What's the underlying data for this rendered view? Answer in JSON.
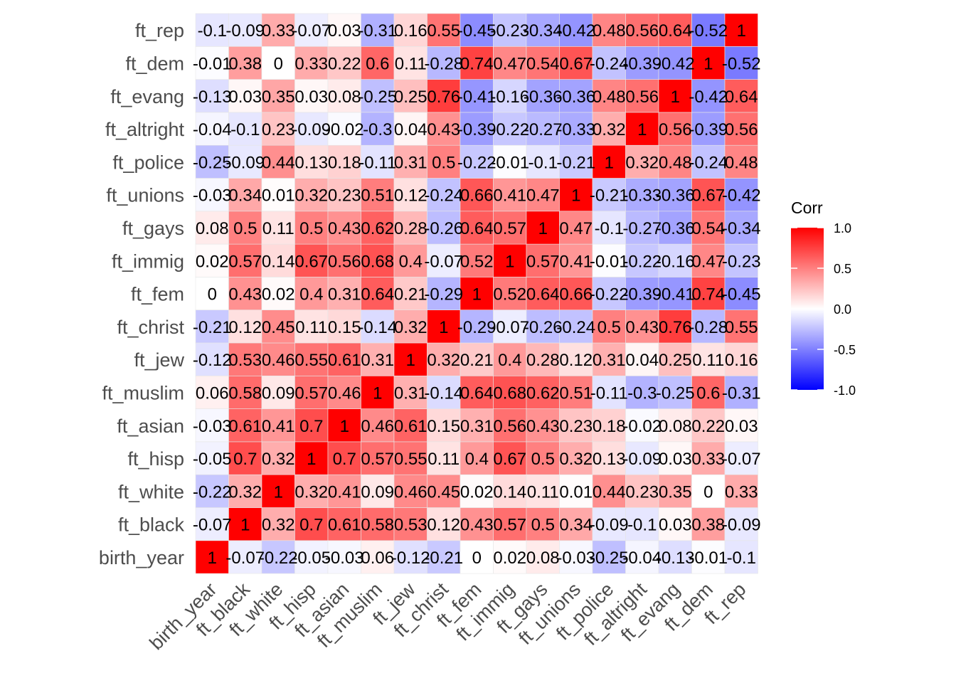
{
  "chart_data": {
    "type": "heatmap",
    "title": "",
    "xlabel": "",
    "ylabel": "",
    "variables": [
      "birth_year",
      "ft_black",
      "ft_white",
      "ft_hisp",
      "ft_asian",
      "ft_muslim",
      "ft_jew",
      "ft_christ",
      "ft_fem",
      "ft_immig",
      "ft_gays",
      "ft_unions",
      "ft_police",
      "ft_altright",
      "ft_evang",
      "ft_dem",
      "ft_rep"
    ],
    "matrix": [
      [
        1,
        -0.07,
        -0.22,
        -0.05,
        -0.03,
        0.06,
        -0.12,
        -0.21,
        0,
        0.02,
        0.08,
        -0.03,
        -0.25,
        -0.04,
        -0.13,
        -0.01,
        -0.1
      ],
      [
        -0.07,
        1,
        0.32,
        0.7,
        0.61,
        0.58,
        0.53,
        0.12,
        0.43,
        0.57,
        0.5,
        0.34,
        -0.09,
        -0.1,
        0.03,
        0.38,
        -0.09
      ],
      [
        -0.22,
        0.32,
        1,
        0.32,
        0.41,
        0.09,
        0.46,
        0.45,
        0.02,
        0.14,
        0.11,
        0.01,
        0.44,
        0.23,
        0.35,
        0,
        0.33
      ],
      [
        -0.05,
        0.7,
        0.32,
        1,
        0.7,
        0.57,
        0.55,
        0.11,
        0.4,
        0.67,
        0.5,
        0.32,
        0.13,
        -0.09,
        0.03,
        0.33,
        -0.07
      ],
      [
        -0.03,
        0.61,
        0.41,
        0.7,
        1,
        0.46,
        0.61,
        0.15,
        0.31,
        0.56,
        0.43,
        0.23,
        0.18,
        -0.02,
        0.08,
        0.22,
        0.03
      ],
      [
        0.06,
        0.58,
        0.09,
        0.57,
        0.46,
        1,
        0.31,
        -0.14,
        0.64,
        0.68,
        0.62,
        0.51,
        -0.11,
        -0.3,
        -0.25,
        0.6,
        -0.31
      ],
      [
        -0.12,
        0.53,
        0.46,
        0.55,
        0.61,
        0.31,
        1,
        0.32,
        0.21,
        0.4,
        0.28,
        0.12,
        0.31,
        0.04,
        0.25,
        0.11,
        0.16
      ],
      [
        -0.21,
        0.12,
        0.45,
        0.11,
        0.15,
        -0.14,
        0.32,
        1,
        -0.29,
        -0.07,
        -0.26,
        -0.24,
        0.5,
        0.43,
        0.76,
        -0.28,
        0.55
      ],
      [
        0,
        0.43,
        0.02,
        0.4,
        0.31,
        0.64,
        0.21,
        -0.29,
        1,
        0.52,
        0.64,
        0.66,
        -0.22,
        -0.39,
        -0.41,
        0.74,
        -0.45
      ],
      [
        0.02,
        0.57,
        0.14,
        0.67,
        0.56,
        0.68,
        0.4,
        -0.07,
        0.52,
        1,
        0.57,
        0.41,
        -0.01,
        -0.22,
        -0.16,
        0.47,
        -0.23
      ],
      [
        0.08,
        0.5,
        0.11,
        0.5,
        0.43,
        0.62,
        0.28,
        -0.26,
        0.64,
        0.57,
        1,
        0.47,
        -0.1,
        -0.27,
        -0.36,
        0.54,
        -0.34
      ],
      [
        -0.03,
        0.34,
        0.01,
        0.32,
        0.23,
        0.51,
        0.12,
        -0.24,
        0.66,
        0.41,
        0.47,
        1,
        -0.21,
        -0.33,
        -0.36,
        0.67,
        -0.42
      ],
      [
        -0.25,
        -0.09,
        0.44,
        0.13,
        0.18,
        -0.11,
        0.31,
        0.5,
        -0.22,
        -0.01,
        -0.1,
        -0.21,
        1,
        0.32,
        0.48,
        -0.24,
        0.48
      ],
      [
        -0.04,
        -0.1,
        0.23,
        -0.09,
        -0.02,
        -0.3,
        0.04,
        0.43,
        -0.39,
        -0.22,
        -0.27,
        -0.33,
        0.32,
        1,
        0.56,
        -0.39,
        0.56
      ],
      [
        -0.13,
        0.03,
        0.35,
        0.03,
        0.08,
        -0.25,
        0.25,
        0.76,
        -0.41,
        -0.16,
        -0.36,
        -0.36,
        0.48,
        0.56,
        1,
        -0.42,
        0.64
      ],
      [
        -0.01,
        0.38,
        0,
        0.33,
        0.22,
        0.6,
        0.11,
        -0.28,
        0.74,
        0.47,
        0.54,
        0.67,
        -0.24,
        -0.39,
        -0.42,
        1,
        -0.52
      ],
      [
        -0.1,
        -0.09,
        0.33,
        -0.07,
        0.03,
        -0.31,
        0.16,
        0.55,
        -0.45,
        -0.23,
        -0.34,
        -0.42,
        0.48,
        0.56,
        0.64,
        -0.52,
        1
      ]
    ],
    "legend": {
      "title": "Corr",
      "placement": "right",
      "ticks": [
        1.0,
        0.5,
        0.0,
        -0.5,
        -1.0
      ],
      "tick_labels": [
        "1.0",
        "0.5",
        "0.0",
        "-0.5",
        "-1.0"
      ],
      "range": [
        -1,
        1
      ]
    },
    "colors": {
      "low": "#0000ff",
      "mid": "#ffffff",
      "high": "#ff0000"
    }
  }
}
